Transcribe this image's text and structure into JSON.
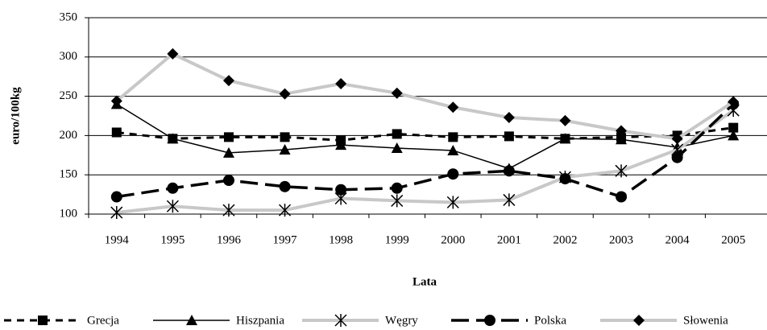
{
  "chart_data": {
    "type": "line",
    "y_label": "euro/100kg",
    "x_label": "Lata",
    "categories": [
      "1994",
      "1995",
      "1996",
      "1997",
      "1998",
      "1999",
      "2000",
      "2001",
      "2002",
      "2003",
      "2004",
      "2005"
    ],
    "ylim": [
      100,
      350
    ],
    "yticks": [
      100,
      150,
      200,
      250,
      300,
      350
    ],
    "grid": true,
    "series": [
      {
        "name": "Grecja",
        "color": "#000000",
        "values": [
          204,
          196,
          198,
          198,
          194,
          202,
          198,
          199,
          196,
          198,
          200,
          210
        ]
      },
      {
        "name": "Hiszpania",
        "color": "#000000",
        "values": [
          240,
          196,
          178,
          182,
          188,
          184,
          181,
          158,
          196,
          195,
          185,
          200
        ]
      },
      {
        "name": "Węgry",
        "color": "#c8c8c8",
        "values": [
          102,
          110,
          105,
          105,
          120,
          117,
          115,
          118,
          147,
          155,
          182,
          232
        ]
      },
      {
        "name": "Polska",
        "color": "#000000",
        "values": [
          122,
          133,
          143,
          135,
          131,
          133,
          151,
          155,
          145,
          122,
          172,
          240
        ]
      },
      {
        "name": "Słowenia",
        "color": "#c8c8c8",
        "values": [
          244,
          304,
          270,
          253,
          266,
          254,
          236,
          223,
          219,
          206,
          196,
          243
        ]
      }
    ]
  }
}
